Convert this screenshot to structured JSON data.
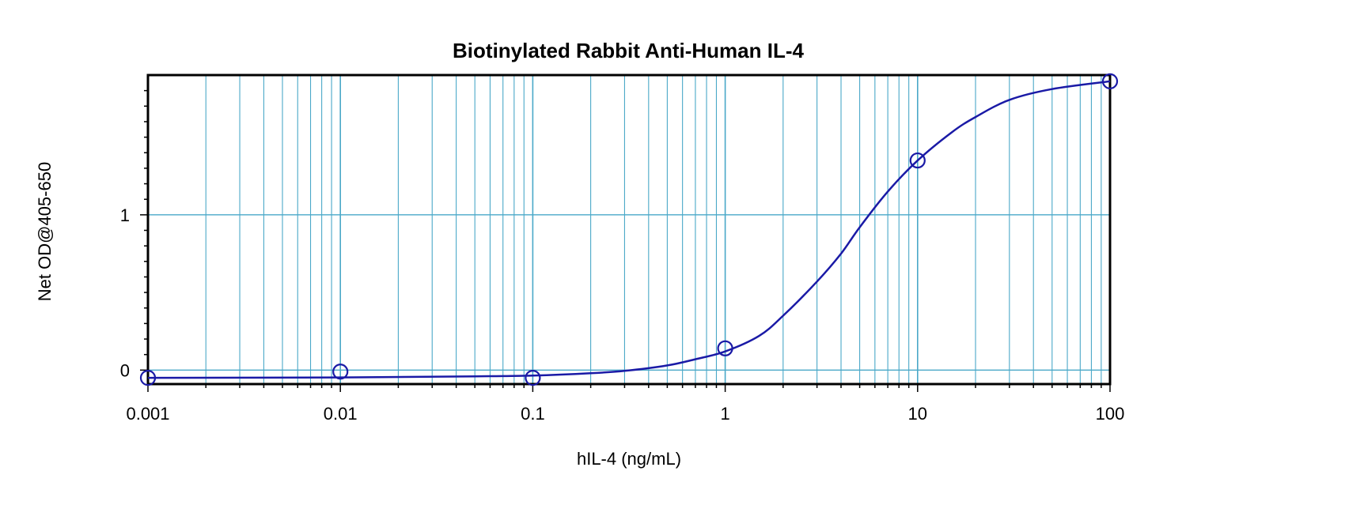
{
  "chart_data": {
    "type": "scatter",
    "title": "Biotinylated Rabbit Anti-Human IL-4",
    "xlabel": "hIL-4 (ng/mL)",
    "ylabel": "Net OD@405-650",
    "x_scale": "log",
    "xlim": [
      0.001,
      100
    ],
    "ylim": [
      -0.09,
      1.9
    ],
    "x_ticks": [
      {
        "value": 0.001,
        "label": "0.001"
      },
      {
        "value": 0.01,
        "label": "0.01"
      },
      {
        "value": 0.1,
        "label": "0.1"
      },
      {
        "value": 1,
        "label": "1"
      },
      {
        "value": 10,
        "label": "10"
      },
      {
        "value": 100,
        "label": "100"
      }
    ],
    "y_ticks": [
      {
        "value": 0,
        "label": "0"
      },
      {
        "value": 1,
        "label": "1"
      }
    ],
    "grid": true,
    "legend": "none",
    "colors": {
      "series": "#1a1aa6",
      "grid": "#4aa8c8",
      "axis": "#000000"
    },
    "series": [
      {
        "points": [
          {
            "x": 0.001,
            "y": -0.05
          },
          {
            "x": 0.01,
            "y": -0.01
          },
          {
            "x": 0.1,
            "y": -0.05
          },
          {
            "x": 1,
            "y": 0.14
          },
          {
            "x": 10,
            "y": 1.35
          },
          {
            "x": 100,
            "y": 1.86
          }
        ],
        "curve": [
          {
            "x": 0.001,
            "y": -0.05
          },
          {
            "x": 0.01,
            "y": -0.047
          },
          {
            "x": 0.05,
            "y": -0.04
          },
          {
            "x": 0.1,
            "y": -0.035
          },
          {
            "x": 0.2,
            "y": -0.02
          },
          {
            "x": 0.3,
            "y": -0.005
          },
          {
            "x": 0.5,
            "y": 0.03
          },
          {
            "x": 0.7,
            "y": 0.07
          },
          {
            "x": 1,
            "y": 0.12
          },
          {
            "x": 1.5,
            "y": 0.22
          },
          {
            "x": 2,
            "y": 0.35
          },
          {
            "x": 3,
            "y": 0.57
          },
          {
            "x": 4,
            "y": 0.75
          },
          {
            "x": 5,
            "y": 0.92
          },
          {
            "x": 7,
            "y": 1.15
          },
          {
            "x": 10,
            "y": 1.35
          },
          {
            "x": 15,
            "y": 1.53
          },
          {
            "x": 20,
            "y": 1.63
          },
          {
            "x": 30,
            "y": 1.74
          },
          {
            "x": 50,
            "y": 1.81
          },
          {
            "x": 100,
            "y": 1.86
          }
        ]
      }
    ]
  }
}
